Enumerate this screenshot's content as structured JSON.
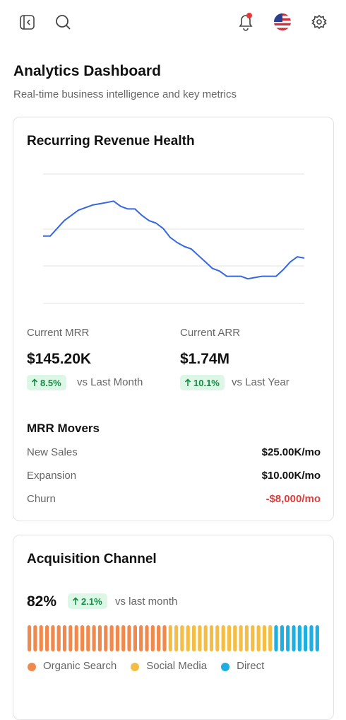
{
  "header": {
    "title": "Analytics Dashboard",
    "subtitle": "Real-time business intelligence and key metrics"
  },
  "revenue_card": {
    "title": "Recurring Revenue Health",
    "chart": {
      "type": "line",
      "color": "#3567e0",
      "ylim": [
        0,
        100
      ],
      "values": [
        52,
        52,
        58,
        64,
        68,
        72,
        74,
        76,
        77,
        78,
        79,
        75,
        73,
        73,
        68,
        64,
        62,
        58,
        51,
        47,
        44,
        42,
        37,
        32,
        27,
        25,
        21,
        21,
        21,
        19,
        20,
        21,
        21,
        21,
        26,
        32,
        36,
        35
      ]
    },
    "metrics": [
      {
        "label": "Current MRR",
        "value": "$145.20K",
        "change": "8.5%",
        "comparison": "vs Last Month"
      },
      {
        "label": "Current ARR",
        "value": "$1.74M",
        "change": "10.1%",
        "comparison": "vs Last Year"
      }
    ],
    "movers": {
      "title": "MRR Movers",
      "rows": [
        [
          "New Sales",
          "$25.00K/mo"
        ],
        [
          "Expansion",
          "$10.00K/mo"
        ],
        [
          "Churn",
          "-$8,000/mo"
        ]
      ]
    }
  },
  "acquisition_card": {
    "title": "Acquisition Channel",
    "value": "82%",
    "change": "2.1%",
    "comparison": "vs last month",
    "chart": {
      "type": "segmented-bar",
      "series": [
        {
          "name": "Organic Search",
          "color": "#f0894d",
          "segments": 24
        },
        {
          "name": "Social Media",
          "color": "#f4bd45",
          "segments": 18
        },
        {
          "name": "Direct",
          "color": "#1eaee0",
          "segments": 8
        }
      ]
    }
  }
}
